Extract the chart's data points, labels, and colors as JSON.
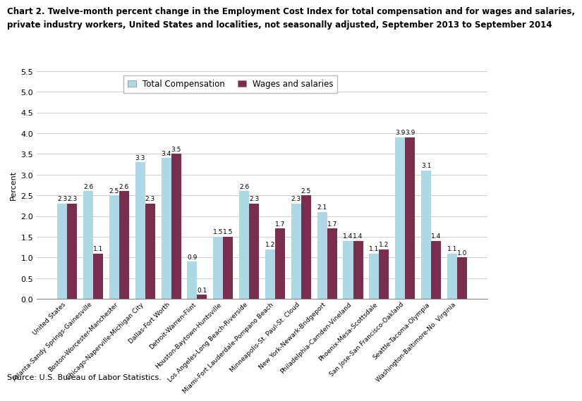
{
  "title_line1": "Chart 2. Twelve-month percent change in the Employment Cost Index for total compensation and for wages and salaries,",
  "title_line2": "private industry workers, United States and localities, not seasonally adjusted, September 2013 to September 2014",
  "ylabel": "Percent",
  "source": "Source: U.S. Bureau of Labor Statistics.",
  "categories": [
    "United States",
    "Atlanta-Sandy Springs-Gainesville",
    "Boston-Worcester-Manchester",
    "Chicago-Naperville-Michigan City",
    "Dallas-Fort Worth",
    "Detroit-Warren-Flint",
    "Houston-Baytown-Huntsville",
    "Los Angeles-Long Beach-Riverside",
    "Miami-Fort Lauderdale-Pompano Beach",
    "Minneapolis-St. Paul-St. Cloud",
    "New York-Newark-Bridgeport",
    "Philadelphia-Camden-Vineland",
    "Phoenix-Mesa-Scottsdale",
    "San Jose-San Francisco-Oakland",
    "Seattle-Tacoma-Olympia",
    "Washington-Baltimore-No. Virginia"
  ],
  "total_compensation": [
    2.3,
    2.6,
    2.5,
    3.3,
    3.4,
    0.9,
    1.5,
    2.6,
    1.2,
    2.3,
    2.1,
    1.4,
    1.1,
    3.9,
    3.1,
    1.1
  ],
  "wages_and_salaries": [
    2.3,
    1.1,
    2.6,
    2.3,
    3.5,
    0.1,
    1.5,
    2.3,
    1.7,
    2.5,
    1.7,
    1.4,
    1.2,
    3.9,
    1.4,
    1.0
  ],
  "color_total": "#ADD8E6",
  "color_wages": "#7B2D4E",
  "ylim": [
    0,
    5.5
  ],
  "yticks": [
    0.0,
    0.5,
    1.0,
    1.5,
    2.0,
    2.5,
    3.0,
    3.5,
    4.0,
    4.5,
    5.0,
    5.5
  ],
  "legend_labels": [
    "Total Compensation",
    "Wages and salaries"
  ],
  "bar_width": 0.38,
  "title_fontsize": 8.5,
  "label_fontsize": 6.5,
  "tick_fontsize": 8,
  "ylabel_fontsize": 8
}
